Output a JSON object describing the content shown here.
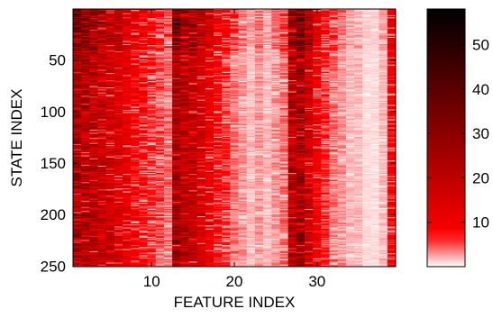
{
  "chart_data": {
    "type": "heatmap",
    "title": "",
    "xlabel": "FEATURE INDEX",
    "ylabel": "STATE INDEX",
    "xlim": [
      0.5,
      39.5
    ],
    "ylim": [
      0.5,
      250.5
    ],
    "x_ticks": [
      10,
      20,
      30
    ],
    "y_ticks": [
      50,
      100,
      150,
      200,
      250
    ],
    "y_direction": "top-to-bottom",
    "rows": 250,
    "cols": 39,
    "colorbar": {
      "min": 0,
      "max": 58,
      "ticks": [
        10,
        20,
        30,
        40,
        50
      ],
      "colormap": "white-red-black"
    },
    "column_mean_values": [
      25,
      23,
      21,
      19,
      17,
      15,
      12,
      9,
      8,
      6,
      5,
      4,
      26,
      22,
      19,
      16,
      12,
      8,
      6,
      4,
      3,
      2,
      3,
      2,
      3,
      4,
      22,
      27,
      18,
      10,
      6,
      4,
      3,
      2,
      2,
      1,
      1,
      2,
      9
    ],
    "upper_rows_boost": 1.35,
    "upper_rows_extent": 40
  }
}
